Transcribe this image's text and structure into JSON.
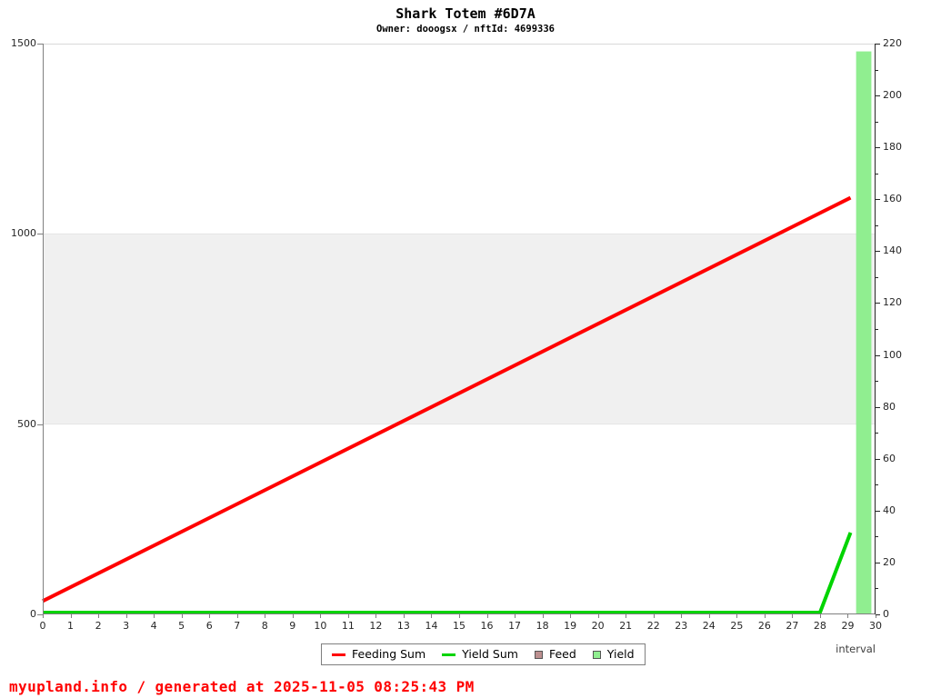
{
  "header": {
    "title": "Shark Totem #6D7A",
    "subtitle": "Owner: dooogsx / nftId: 4699336"
  },
  "footer": {
    "credit": "myupland.info / generated at 2025-11-05 08:25:43 PM"
  },
  "colors": {
    "feeding_sum_line": "#ff0000",
    "yield_sum_line": "#00d400",
    "feed_bar": "#bc8f8f",
    "yield_bar": "#90ee90",
    "band": "#f0f0f0",
    "axis_gray": "#808080",
    "axis_dark": "#262626",
    "axis_top": "#d9d9d9",
    "footer_text": "#ff0000"
  },
  "chart_data": {
    "type": "line",
    "title": "Shark Totem #6D7A",
    "subtitle": "Owner: dooogsx / nftId: 4699336",
    "xlabel": "interval",
    "grid": false,
    "x_axis": {
      "min": 0,
      "max": 30,
      "ticks": [
        0,
        1,
        2,
        3,
        4,
        5,
        6,
        7,
        8,
        9,
        10,
        11,
        12,
        13,
        14,
        15,
        16,
        17,
        18,
        19,
        20,
        21,
        22,
        23,
        24,
        25,
        26,
        27,
        28,
        29,
        30
      ]
    },
    "left_axis": {
      "min": 0,
      "max": 1500,
      "ticks": [
        0,
        500,
        1000,
        1500
      ]
    },
    "right_axis": {
      "min": 0,
      "max": 220,
      "major_ticks": [
        0,
        20,
        40,
        60,
        80,
        100,
        120,
        140,
        160,
        180,
        200,
        220
      ],
      "minor_ticks": [
        10,
        30,
        50,
        70,
        90,
        110,
        130,
        150,
        170,
        190,
        210
      ]
    },
    "band": {
      "axis": "left",
      "from": 500,
      "to": 1000,
      "color": "#f0f0f0",
      "edge_color": "#e4e4e4"
    },
    "series": [
      {
        "name": "Feeding Sum",
        "type": "line",
        "axis": "left",
        "color": "#ff0000",
        "points": [
          [
            0,
            35
          ],
          [
            29.1,
            1095
          ]
        ]
      },
      {
        "name": "Yield Sum",
        "type": "line",
        "axis": "left",
        "color": "#00d400",
        "points": [
          [
            0,
            0
          ],
          [
            28,
            0
          ],
          [
            29.1,
            215
          ]
        ]
      },
      {
        "name": "Feed",
        "type": "bar",
        "axis": "right",
        "color": "#bc8f8f",
        "bars": []
      },
      {
        "name": "Yield",
        "type": "bar",
        "axis": "right",
        "color": "#90ee90",
        "bars": [
          {
            "x_from": 29.3,
            "x_to": 29.85,
            "value": 217
          }
        ]
      }
    ],
    "legend": {
      "position": "bottom-center",
      "entries": [
        {
          "label": "Feeding Sum",
          "swatch": "line",
          "color": "#ff0000"
        },
        {
          "label": "Yield Sum",
          "swatch": "line",
          "color": "#00d400"
        },
        {
          "label": "Feed",
          "swatch": "box",
          "color": "#bc8f8f"
        },
        {
          "label": "Yield",
          "swatch": "box",
          "color": "#90ee90"
        }
      ]
    }
  }
}
